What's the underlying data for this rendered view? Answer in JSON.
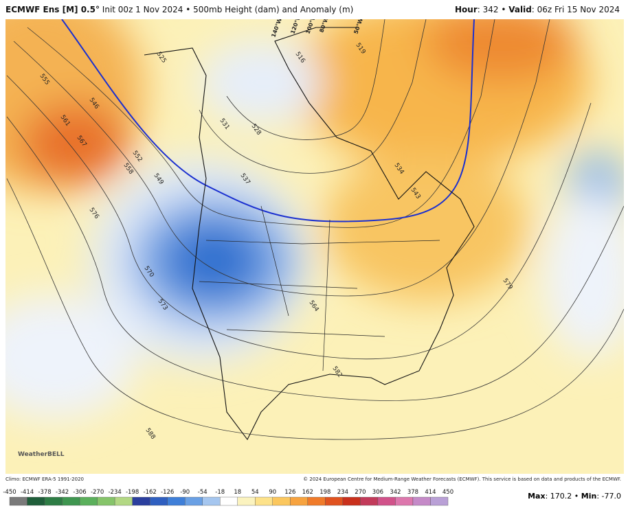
{
  "header": {
    "model": "ECMWF Ens [M] 0.5°",
    "info": "Init 00z 1 Nov 2024 • 500mb Height (dam) and Anomaly (m)",
    "hour_label": "Hour",
    "hour": ": 342 •",
    "valid_label": "Valid",
    "valid": ": 06z Fri 15 Nov 2024"
  },
  "map": {
    "contour_labels": [
      525,
      555,
      546,
      561,
      567,
      558,
      552,
      549,
      576,
      531,
      528,
      537,
      516,
      519,
      534,
      543,
      570,
      573,
      564,
      582,
      579,
      588
    ],
    "longitude_labels": [
      "140°W",
      "120°W",
      "100°W",
      "80°W",
      "50°W"
    ],
    "logo": "WeatherBELL"
  },
  "footer": {
    "climo": "Climo: ECMWF ERA-5 1991-2020",
    "copyright": "© 2024 European Centre for Medium-Range Weather Forecasts (ECMWF). This service is based on data and products of the ECMWF."
  },
  "colorbar": {
    "ticks": [
      -450,
      -414,
      -378,
      -342,
      -306,
      -270,
      -234,
      -198,
      -162,
      -126,
      -90,
      -54,
      -18,
      18,
      54,
      90,
      126,
      162,
      198,
      234,
      270,
      306,
      342,
      378,
      414,
      450
    ],
    "colors": [
      "#7a7a7a",
      "#1f5e3a",
      "#2e7d45",
      "#3f9650",
      "#5bb05c",
      "#86c46a",
      "#b3d884",
      "#2b3f9e",
      "#2f5fc0",
      "#3f7fd8",
      "#6aa0e4",
      "#a5c6ef",
      "#ffffff",
      "#fbf3bf",
      "#fde28a",
      "#fbc75e",
      "#f7a33f",
      "#f07b2a",
      "#e0521f",
      "#c9301c",
      "#c23a5a",
      "#d1528a",
      "#dd77ad",
      "#c58ac8",
      "#b9a0d6"
    ],
    "max_label": "Max",
    "max": ": 170.2 •",
    "min_label": "Min",
    "min": ": -77.0"
  }
}
